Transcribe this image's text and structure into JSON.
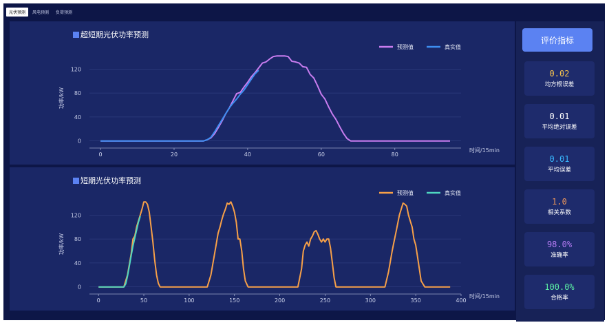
{
  "tabs": [
    {
      "label": "光伏预测",
      "active": true
    },
    {
      "label": "风电预测",
      "active": false
    },
    {
      "label": "负荷预测",
      "active": false
    }
  ],
  "metrics": {
    "button_label": "评价指标",
    "items": [
      {
        "value": "0.02",
        "label": "均方根误差",
        "color": "#f7c44d"
      },
      {
        "value": "0.01",
        "label": "平均绝对误差",
        "color": "#ffffff"
      },
      {
        "value": "0.01",
        "label": "平均误差",
        "color": "#38b8ff"
      },
      {
        "value": "1.0",
        "label": "相关系数",
        "color": "#f39a5a"
      },
      {
        "value": "98.0%",
        "label": "准确率",
        "color": "#b57cf3"
      },
      {
        "value": "100.0%",
        "label": "合格率",
        "color": "#5cf0a4"
      }
    ]
  },
  "chart_data": [
    {
      "type": "line",
      "title": "超短期光伏功率预测",
      "xlabel": "时间/15min",
      "ylabel": "功率/kW",
      "xlim": [
        -3,
        98
      ],
      "ylim": [
        -5,
        148
      ],
      "xticks": [
        0,
        20,
        40,
        60,
        80
      ],
      "yticks": [
        0,
        40,
        80,
        120
      ],
      "grid": true,
      "legend": "top-right",
      "series": [
        {
          "name": "预测值",
          "color": "#c97df0",
          "x": [
            0,
            10,
            20,
            28,
            29,
            30,
            31,
            32,
            33,
            34,
            35,
            36,
            37,
            38,
            39,
            40,
            41,
            42,
            43,
            44,
            45,
            46,
            47,
            48,
            49,
            50,
            51,
            52,
            53,
            54,
            55,
            56,
            57,
            58,
            59,
            60,
            61,
            62,
            63,
            64,
            65,
            66,
            67,
            68,
            70,
            80,
            95
          ],
          "y": [
            0,
            0,
            0,
            0,
            2,
            5,
            12,
            22,
            33,
            45,
            55,
            67,
            79,
            81,
            90,
            98,
            107,
            114,
            122,
            130,
            132,
            137,
            141,
            142,
            142,
            142,
            141,
            133,
            132,
            130,
            124,
            123,
            111,
            105,
            92,
            78,
            70,
            57,
            45,
            36,
            24,
            13,
            4,
            0,
            0,
            0,
            0
          ]
        },
        {
          "name": "真实值",
          "color": "#3d8ef0",
          "x": [
            0,
            10,
            20,
            28,
            29,
            30,
            31,
            32,
            33,
            34,
            35,
            36,
            37,
            38,
            39,
            40,
            41,
            42,
            43
          ],
          "y": [
            0,
            0,
            0,
            0,
            2,
            6,
            15,
            25,
            35,
            45,
            55,
            63,
            70,
            78,
            85,
            94,
            103,
            112,
            118
          ]
        }
      ]
    },
    {
      "type": "line",
      "title": "短期光伏功率预测",
      "xlabel": "时间/15min",
      "ylabel": "功率/kW",
      "xlim": [
        -10,
        400
      ],
      "ylim": [
        -5,
        148
      ],
      "xticks": [
        0,
        50,
        100,
        150,
        200,
        250,
        300,
        350,
        400
      ],
      "yticks": [
        0,
        40,
        80,
        120
      ],
      "grid": true,
      "legend": "top-right",
      "series": [
        {
          "name": "预测值",
          "color": "#f7a048",
          "x": [
            0,
            28,
            32,
            36,
            38,
            40,
            42,
            44,
            46,
            48,
            50,
            52,
            54,
            56,
            58,
            60,
            62,
            64,
            66,
            68,
            70,
            120,
            124,
            128,
            132,
            134,
            136,
            138,
            140,
            142,
            144,
            146,
            148,
            150,
            152,
            154,
            156,
            158,
            160,
            162,
            165,
            200,
            220,
            224,
            226,
            228,
            230,
            232,
            234,
            236,
            238,
            240,
            242,
            244,
            246,
            248,
            250,
            252,
            254,
            256,
            258,
            260,
            262,
            300,
            316,
            320,
            324,
            326,
            328,
            330,
            332,
            334,
            336,
            338,
            340,
            342,
            344,
            346,
            348,
            350,
            352,
            356,
            360,
            388
          ],
          "y": [
            0,
            0,
            20,
            55,
            80,
            85,
            100,
            110,
            120,
            130,
            142,
            142,
            138,
            125,
            100,
            75,
            45,
            20,
            6,
            0,
            0,
            0,
            20,
            55,
            90,
            100,
            112,
            122,
            130,
            140,
            138,
            142,
            135,
            125,
            108,
            80,
            80,
            60,
            30,
            10,
            0,
            0,
            0,
            30,
            60,
            70,
            75,
            68,
            80,
            85,
            92,
            94,
            88,
            80,
            75,
            80,
            75,
            80,
            80,
            65,
            40,
            15,
            0,
            0,
            0,
            25,
            60,
            75,
            90,
            105,
            120,
            130,
            140,
            138,
            135,
            120,
            110,
            100,
            80,
            70,
            50,
            10,
            0,
            0
          ]
        },
        {
          "name": "真实值",
          "color": "#4fd6c0",
          "x": [
            0,
            28,
            30,
            32,
            34,
            36,
            38,
            40,
            42,
            44,
            46
          ],
          "y": [
            0,
            0,
            5,
            18,
            35,
            52,
            68,
            82,
            95,
            108,
            118
          ]
        }
      ]
    }
  ]
}
